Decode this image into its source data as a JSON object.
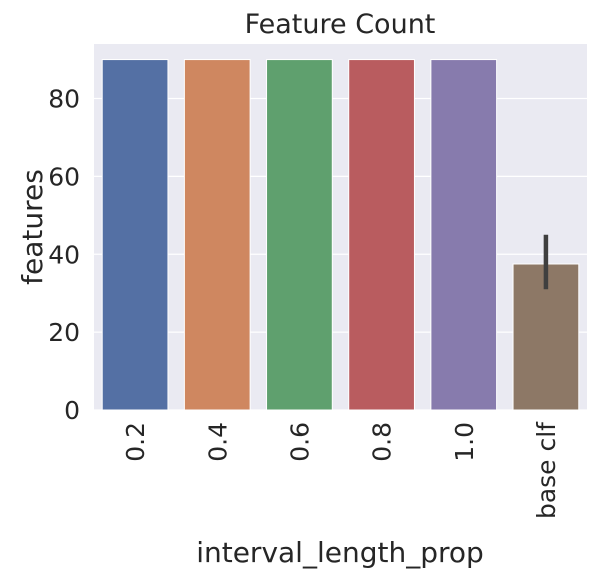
{
  "chart_data": {
    "type": "bar",
    "title": "Feature Count",
    "xlabel": "interval_length_prop",
    "ylabel": "features",
    "categories": [
      "0.2",
      "0.4",
      "0.6",
      "0.8",
      "1.0",
      "base clf"
    ],
    "values": [
      90,
      90,
      90,
      90,
      90,
      37.5
    ],
    "error_bars": [
      null,
      null,
      null,
      null,
      null,
      [
        31,
        45
      ]
    ],
    "ylim": [
      0,
      94
    ],
    "yticks": [
      0,
      20,
      40,
      60,
      80
    ],
    "grid": true,
    "colors": [
      "#5470a4",
      "#cf8760",
      "#5fa06e",
      "#b95c5f",
      "#877bad",
      "#8d7866"
    ],
    "background": "#eaeaf2",
    "error_color": "#3f3f3f"
  }
}
